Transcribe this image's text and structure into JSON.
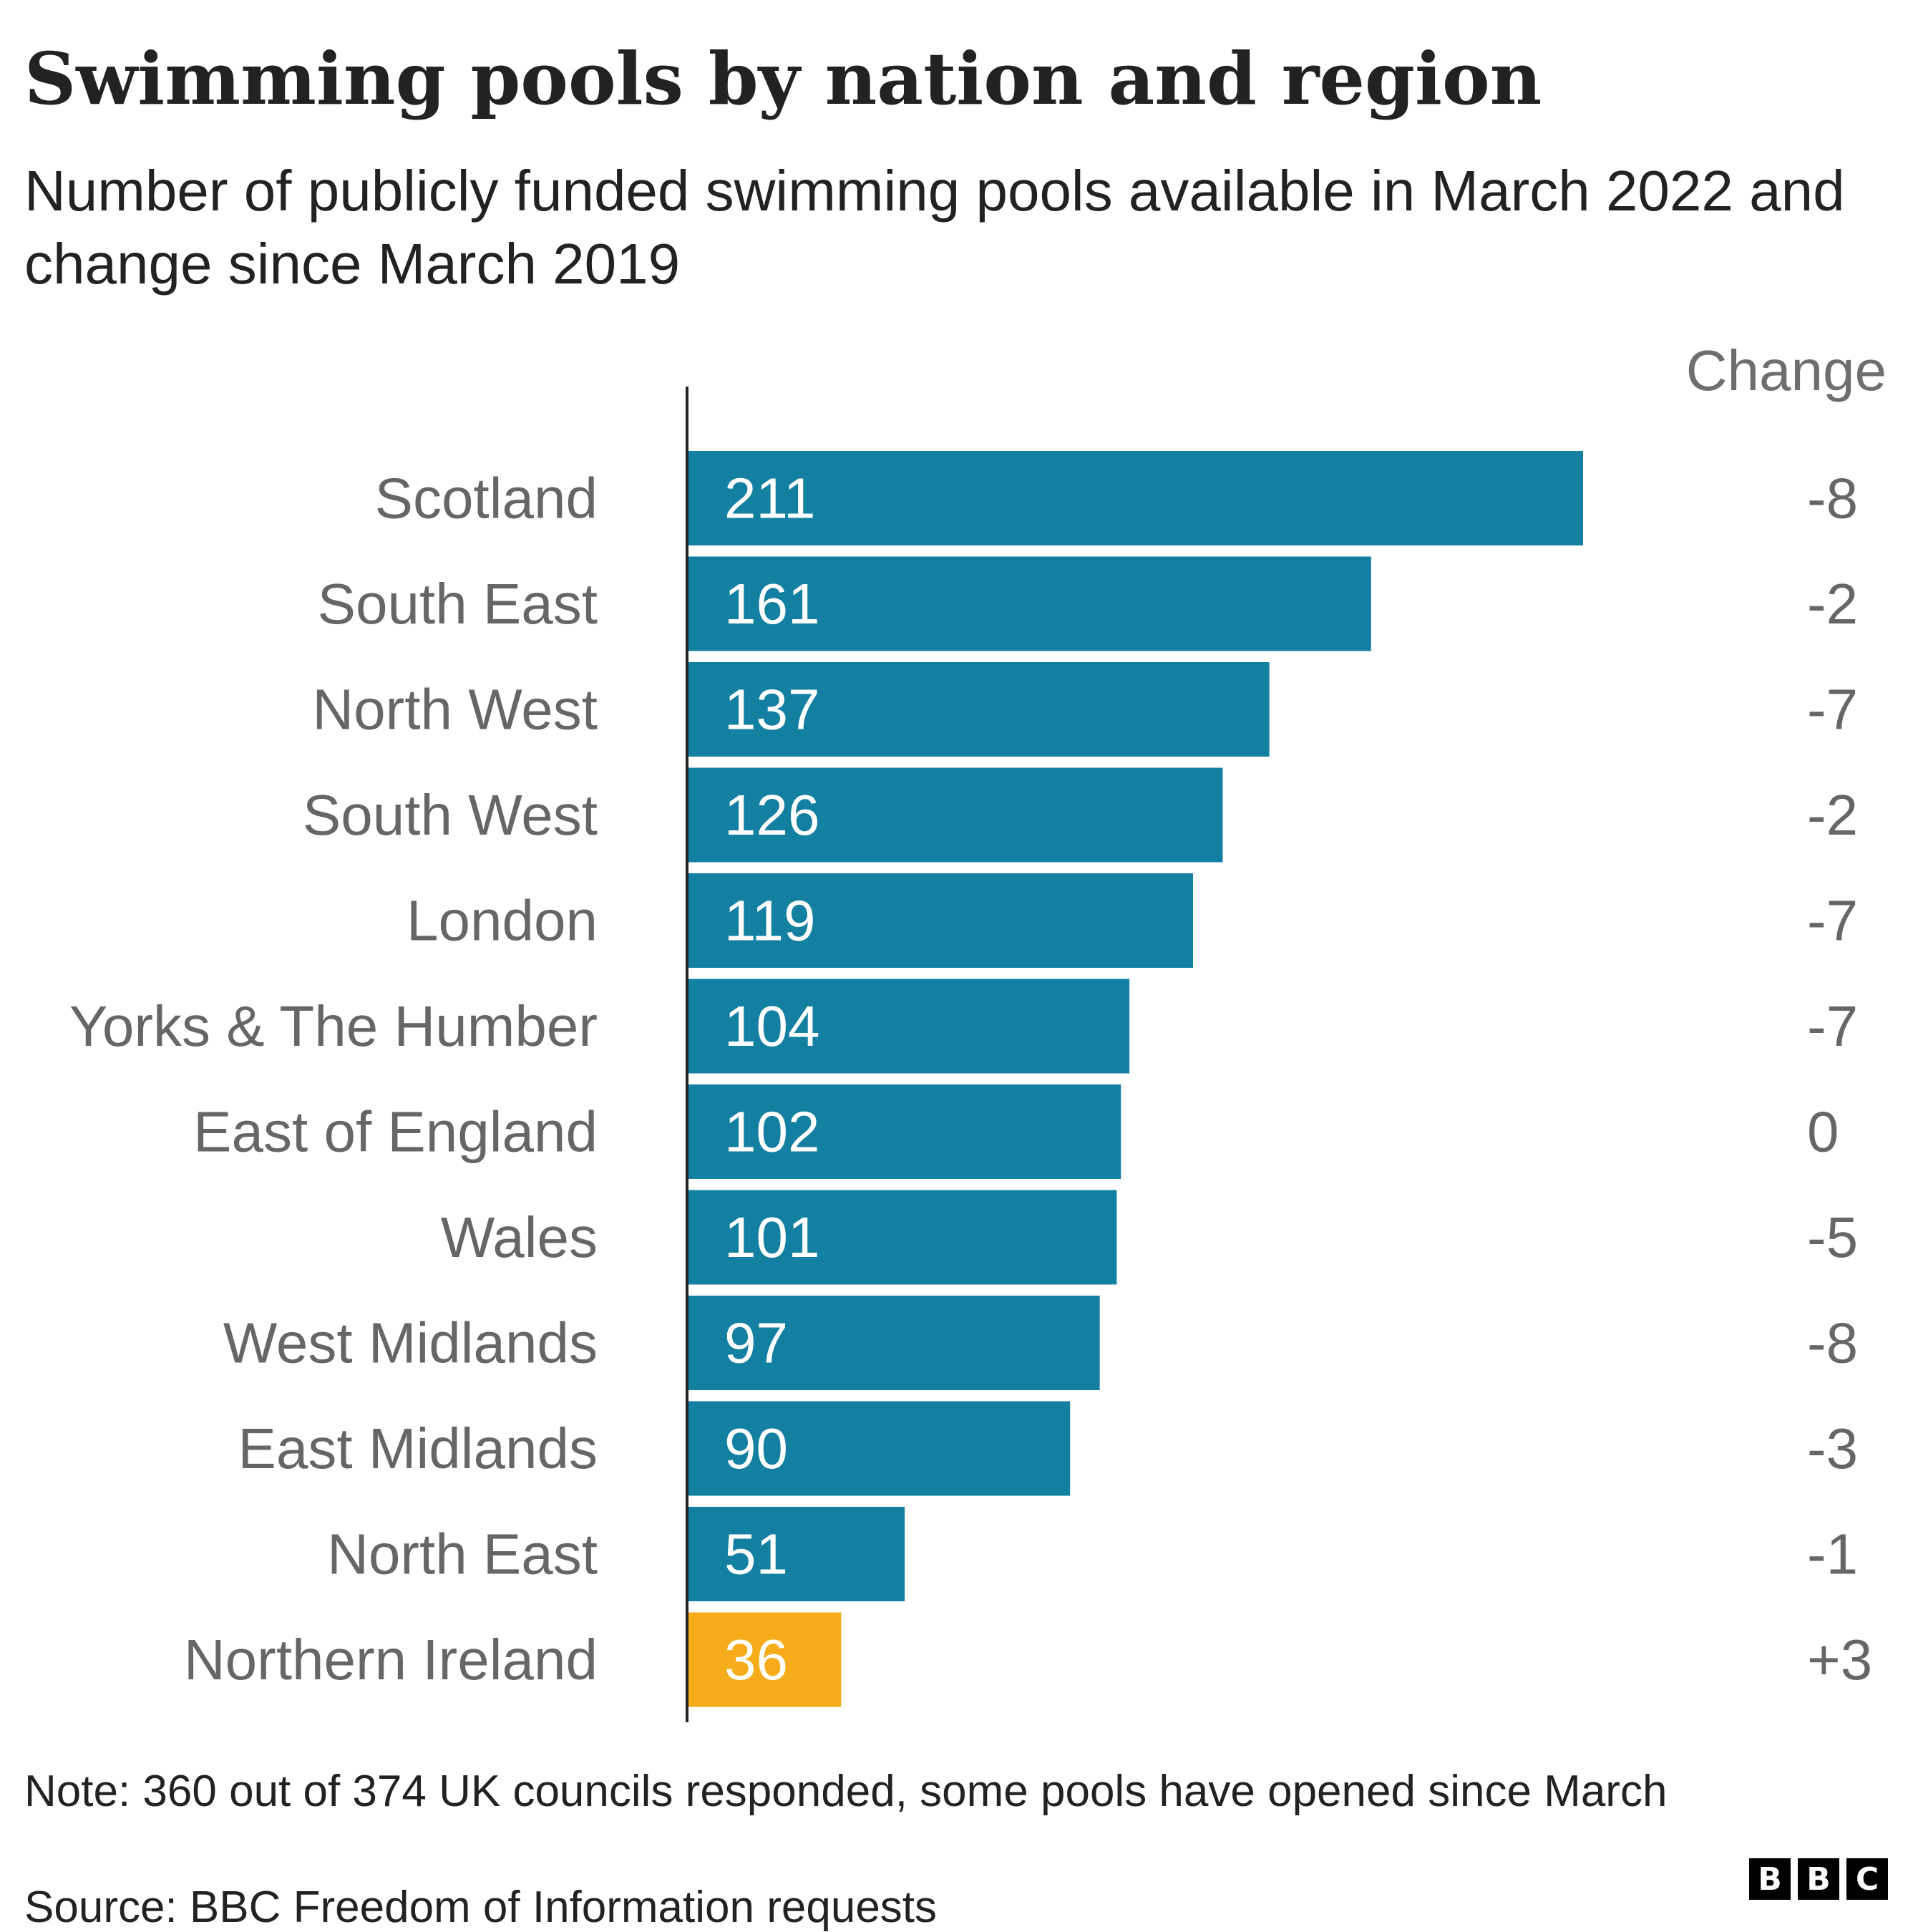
{
  "chart_data": {
    "type": "bar",
    "orientation": "horizontal",
    "title": "Swimming pools by nation and region",
    "subtitle": "Number of publicly funded swimming pools available in March 2022 and change since March 2019",
    "categories": [
      "Scotland",
      "South East",
      "North West",
      "South West",
      "London",
      "Yorks & The Humber",
      "East of England",
      "Wales",
      "West Midlands",
      "East Midlands",
      "North East",
      "Northern Ireland"
    ],
    "values": [
      211,
      161,
      137,
      126,
      119,
      104,
      102,
      101,
      97,
      90,
      51,
      36
    ],
    "change_header": "Change",
    "changes": [
      "-8",
      "-2",
      "-7",
      "-2",
      "-7",
      "-7",
      "0",
      "-5",
      "-8",
      "-3",
      "-1",
      "+3"
    ],
    "bar_colors": [
      "#1380a1",
      "#1380a1",
      "#1380a1",
      "#1380a1",
      "#1380a1",
      "#1380a1",
      "#1380a1",
      "#1380a1",
      "#1380a1",
      "#1380a1",
      "#1380a1",
      "#f6ac1b"
    ],
    "xlim": [
      0,
      211
    ],
    "grid": false,
    "legend": "none"
  },
  "footer": {
    "note": "Note: 360 out of 374 UK councils responded, some pools have opened since March",
    "source": "Source: BBC Freedom of Information requests",
    "logo": [
      "B",
      "B",
      "C"
    ]
  }
}
